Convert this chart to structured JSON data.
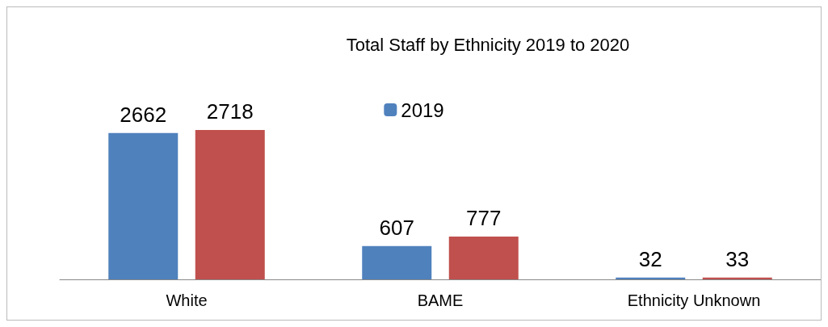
{
  "chart_data": {
    "type": "bar",
    "title": "Total Staff by Ethnicity 2019 to 2020",
    "categories": [
      "White",
      "BAME",
      "Ethnicity Unknown"
    ],
    "series": [
      {
        "name": "2019",
        "color": "#4f81bd",
        "values": [
          2662,
          607,
          32
        ]
      },
      {
        "color": "#c0504d",
        "values": [
          2718,
          777,
          33
        ]
      }
    ],
    "data_labels": true,
    "legend": "top"
  }
}
